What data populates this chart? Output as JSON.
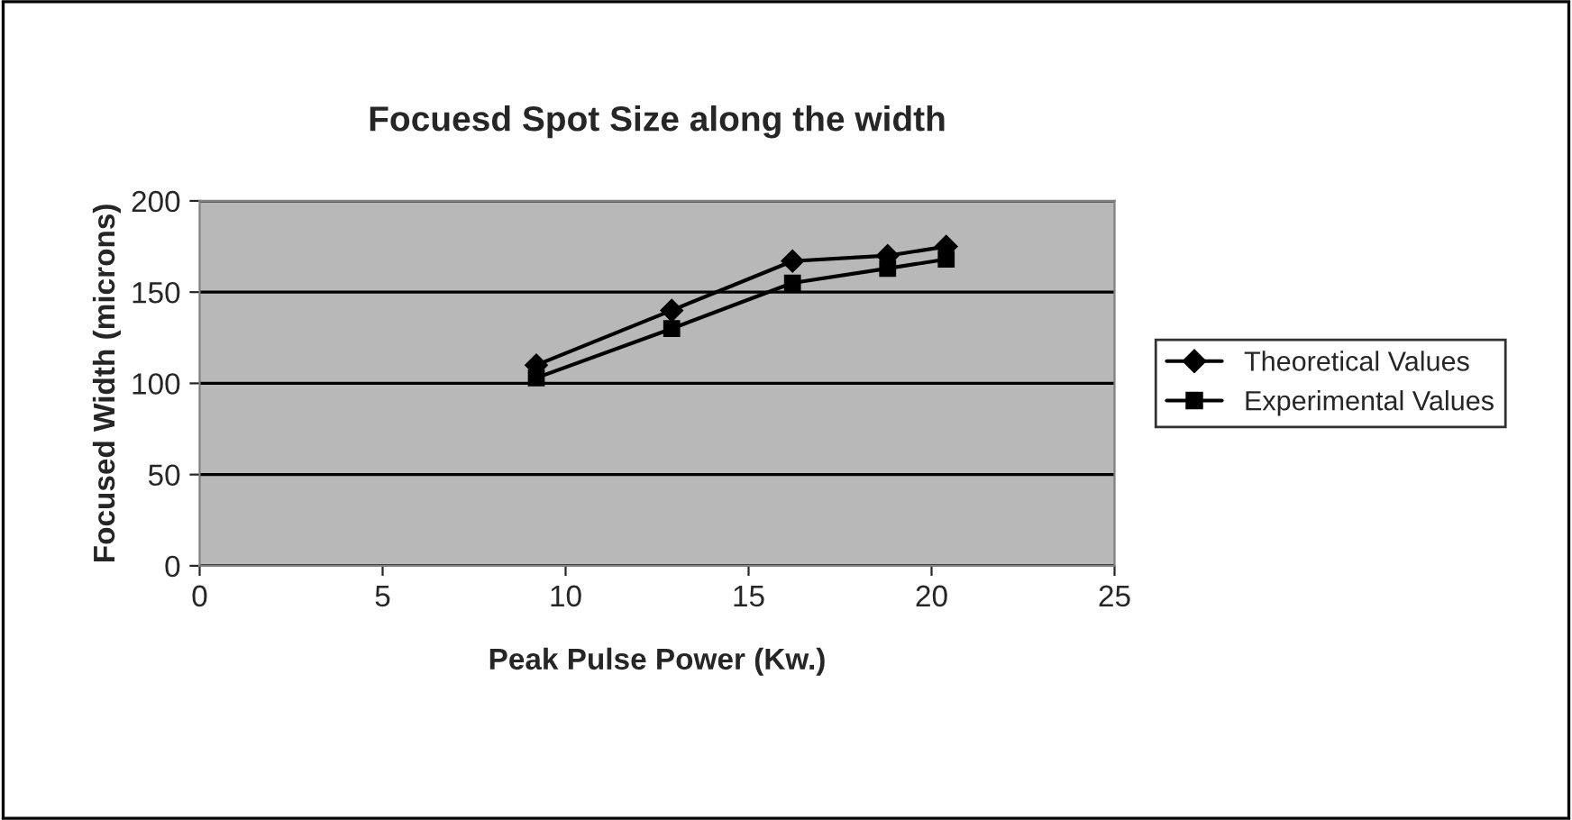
{
  "chart_data": {
    "type": "line",
    "title": "Focuesd Spot Size along the width",
    "xlabel": "Peak Pulse Power (Kw.)",
    "ylabel": "Focused Width (microns)",
    "x": [
      9.2,
      12.9,
      16.2,
      18.8,
      20.4
    ],
    "series": [
      {
        "name": "Theoretical Values",
        "color": "#000000",
        "marker": "diamond",
        "values": [
          110,
          140,
          167,
          170,
          175
        ]
      },
      {
        "name": "Experimental Values",
        "color": "#000000",
        "marker": "square",
        "values": [
          103,
          130,
          155,
          163,
          168
        ]
      }
    ],
    "xlim": [
      0,
      25
    ],
    "xticks": [
      0,
      5,
      10,
      15,
      20,
      25
    ],
    "ylim": [
      0,
      200
    ],
    "yticks": [
      0,
      50,
      100,
      150,
      200
    ],
    "grid": "y",
    "legend": "right"
  }
}
